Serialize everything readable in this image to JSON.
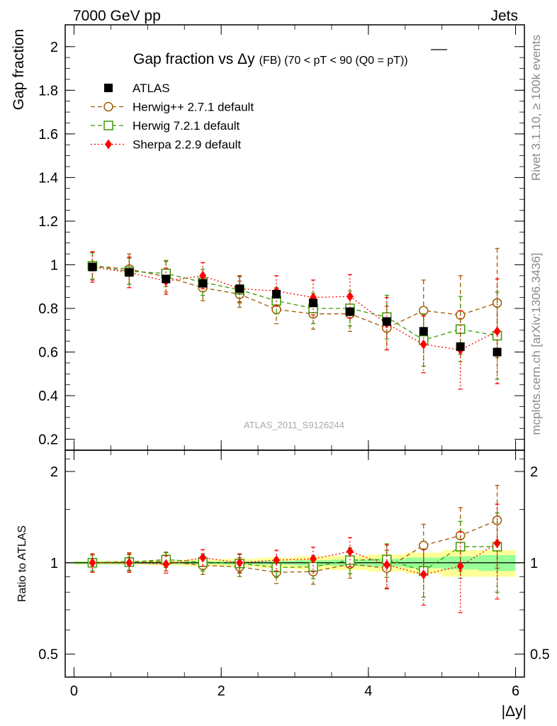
{
  "header": {
    "left": "7000 GeV pp",
    "right": "Jets"
  },
  "side_labels": {
    "rivet": "Rivet 3.1.10, ≥ 100k events",
    "mcplots": "mcplots.cern.ch [arXiv:1306.3436]"
  },
  "watermark": "ATLAS_2011_S9126244",
  "chart_data": [
    {
      "type": "scatter",
      "panel": "main",
      "title": "Gap fraction vs Δy",
      "title_detail": "(FB) (70 < pT <  90 (Q0 = pT))",
      "xlabel": "|Δy|",
      "ylabel": "Gap fraction",
      "xlim": [
        -0.12,
        6.12
      ],
      "ylim": [
        0.15,
        2.1
      ],
      "y_ticks": [
        0.2,
        0.4,
        0.6,
        0.8,
        1,
        1.2,
        1.4,
        1.6,
        1.8,
        2
      ],
      "y_tick_labels": [
        "0.2",
        "0.4",
        "0.6",
        "0.8",
        "1",
        "1.2",
        "1.4",
        "1.6",
        "1.8",
        "2"
      ],
      "x": [
        0.25,
        0.75,
        1.25,
        1.75,
        2.25,
        2.75,
        3.25,
        3.75,
        4.25,
        4.75,
        5.25,
        5.75
      ],
      "series": [
        {
          "name": "ATLAS",
          "color": "#000000",
          "marker": "square-filled",
          "values": [
            0.99,
            0.965,
            0.935,
            0.915,
            0.89,
            0.865,
            0.825,
            0.785,
            0.74,
            0.695,
            0.625,
            0.6
          ]
        },
        {
          "name": "Herwig++ 2.7.1 default",
          "color": "#a05a00",
          "marker": "circle-open",
          "line": "dashed",
          "values": [
            0.995,
            0.98,
            0.945,
            0.895,
            0.865,
            0.795,
            0.775,
            0.775,
            0.71,
            0.79,
            0.77,
            0.825
          ],
          "err": [
            0.065,
            0.07,
            0.07,
            0.06,
            0.06,
            0.065,
            0.07,
            0.08,
            0.1,
            0.14,
            0.18,
            0.25
          ]
        },
        {
          "name": "Herwig 7.2.1 default",
          "color": "#3a9a00",
          "marker": "square-open",
          "line": "dashed",
          "values": [
            0.995,
            0.97,
            0.96,
            0.92,
            0.885,
            0.835,
            0.8,
            0.8,
            0.76,
            0.655,
            0.705,
            0.675
          ],
          "err": [
            0.06,
            0.06,
            0.06,
            0.06,
            0.06,
            0.06,
            0.07,
            0.08,
            0.1,
            0.12,
            0.15,
            0.2
          ]
        },
        {
          "name": "Sherpa 2.2.9 default",
          "color": "#ff0000",
          "marker": "diamond-filled",
          "line": "dotted",
          "values": [
            0.99,
            0.965,
            0.925,
            0.95,
            0.89,
            0.88,
            0.85,
            0.855,
            0.73,
            0.635,
            0.61,
            0.695
          ],
          "err": [
            0.07,
            0.07,
            0.06,
            0.06,
            0.06,
            0.07,
            0.08,
            0.1,
            0.12,
            0.13,
            0.18,
            0.24
          ]
        }
      ]
    },
    {
      "type": "scatter",
      "panel": "ratio",
      "ylabel": "Ratio to ATLAS",
      "xlabel": "|Δy|",
      "xlim": [
        -0.12,
        6.12
      ],
      "ylim": [
        0.42,
        2.35
      ],
      "y_scale": "log",
      "y_ticks": [
        0.5,
        1,
        2
      ],
      "y_tick_labels": [
        "0.5",
        "1",
        "2"
      ],
      "x_ticks": [
        0,
        2,
        4,
        6
      ],
      "x_tick_labels": [
        "0",
        "2",
        "4",
        "6"
      ],
      "x": [
        0.25,
        0.75,
        1.25,
        1.75,
        2.25,
        2.75,
        3.25,
        3.75,
        4.25,
        4.75,
        5.25,
        5.75
      ],
      "band_stat": [
        0.01,
        0.01,
        0.01,
        0.01,
        0.012,
        0.015,
        0.02,
        0.025,
        0.03,
        0.04,
        0.05,
        0.06
      ],
      "band_total": [
        0.015,
        0.015,
        0.02,
        0.025,
        0.03,
        0.04,
        0.05,
        0.055,
        0.065,
        0.08,
        0.1,
        0.1
      ],
      "series": [
        {
          "name": "Herwig++ 2.7.1 default",
          "color": "#a05a00",
          "marker": "circle-open",
          "line": "dashed",
          "values": [
            1.0,
            1.01,
            1.01,
            0.98,
            0.97,
            0.93,
            0.935,
            0.99,
            0.96,
            1.14,
            1.23,
            1.38
          ],
          "err": [
            0.07,
            0.07,
            0.07,
            0.065,
            0.07,
            0.075,
            0.085,
            0.1,
            0.14,
            0.2,
            0.29,
            0.42
          ]
        },
        {
          "name": "Herwig 7.2.1 default",
          "color": "#3a9a00",
          "marker": "square-open",
          "line": "dashed",
          "values": [
            1.0,
            1.005,
            1.025,
            1.005,
            0.995,
            0.965,
            0.97,
            1.02,
            1.025,
            0.94,
            1.13,
            1.13
          ],
          "err": [
            0.06,
            0.06,
            0.06,
            0.065,
            0.07,
            0.07,
            0.085,
            0.1,
            0.13,
            0.17,
            0.24,
            0.33
          ]
        },
        {
          "name": "Sherpa 2.2.9 default",
          "color": "#ff0000",
          "marker": "diamond-filled",
          "line": "dotted",
          "values": [
            1.0,
            1.0,
            0.99,
            1.04,
            1.0,
            1.02,
            1.03,
            1.09,
            0.985,
            0.915,
            0.975,
            1.16
          ],
          "err": [
            0.07,
            0.07,
            0.065,
            0.065,
            0.07,
            0.08,
            0.095,
            0.12,
            0.16,
            0.19,
            0.29,
            0.4
          ]
        }
      ]
    }
  ]
}
